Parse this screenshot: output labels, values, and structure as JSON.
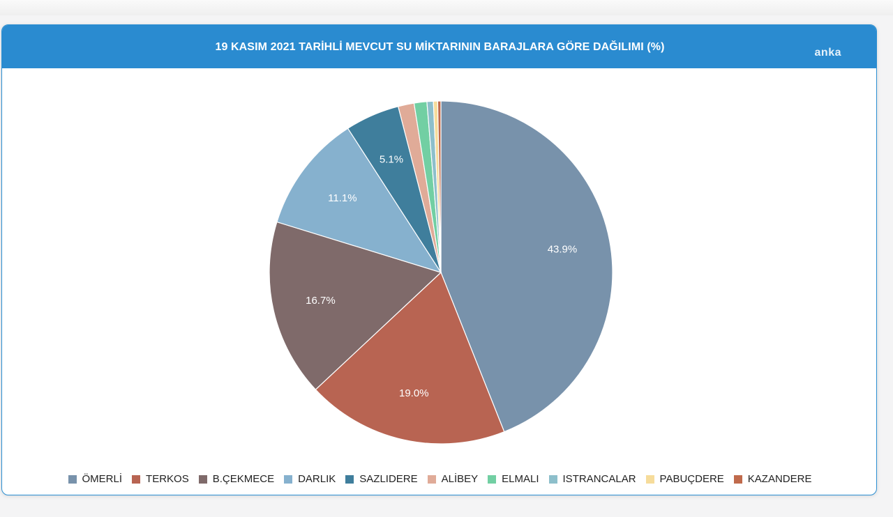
{
  "header": {
    "brand": "anka"
  },
  "chart_data": {
    "type": "pie",
    "title": "19 KASIM 2021 TARİHLİ MEVCUT SU MİKTARININ BARAJLARA GÖRE DAĞILIMI (%)",
    "legend_position": "bottom",
    "slices": [
      {
        "label": "ÖMERLİ",
        "value": 43.9,
        "value_label": "43.9%",
        "color": "#7892ab"
      },
      {
        "label": "TERKOS",
        "value": 19.0,
        "value_label": "19.0%",
        "color": "#b86452"
      },
      {
        "label": "B.ÇEKMECE",
        "value": 16.7,
        "value_label": "16.7%",
        "color": "#7f6a6a"
      },
      {
        "label": "DARLIK",
        "value": 11.1,
        "value_label": "11.1%",
        "color": "#86b1ce"
      },
      {
        "label": "SAZLIDERE",
        "value": 5.1,
        "value_label": "5.1%",
        "color": "#3f7e9c"
      },
      {
        "label": "ALİBEY",
        "value": 1.5,
        "value_label": "",
        "color": "#e0ab98"
      },
      {
        "label": "ELMALI",
        "value": 1.2,
        "value_label": "",
        "color": "#72cfa3"
      },
      {
        "label": "ISTRANCALAR",
        "value": 0.6,
        "value_label": "",
        "color": "#8dbfcb"
      },
      {
        "label": "PABUÇDERE",
        "value": 0.4,
        "value_label": "",
        "color": "#f6dc9b"
      },
      {
        "label": "KAZANDERE",
        "value": 0.3,
        "value_label": "",
        "color": "#c06a4c"
      }
    ]
  }
}
